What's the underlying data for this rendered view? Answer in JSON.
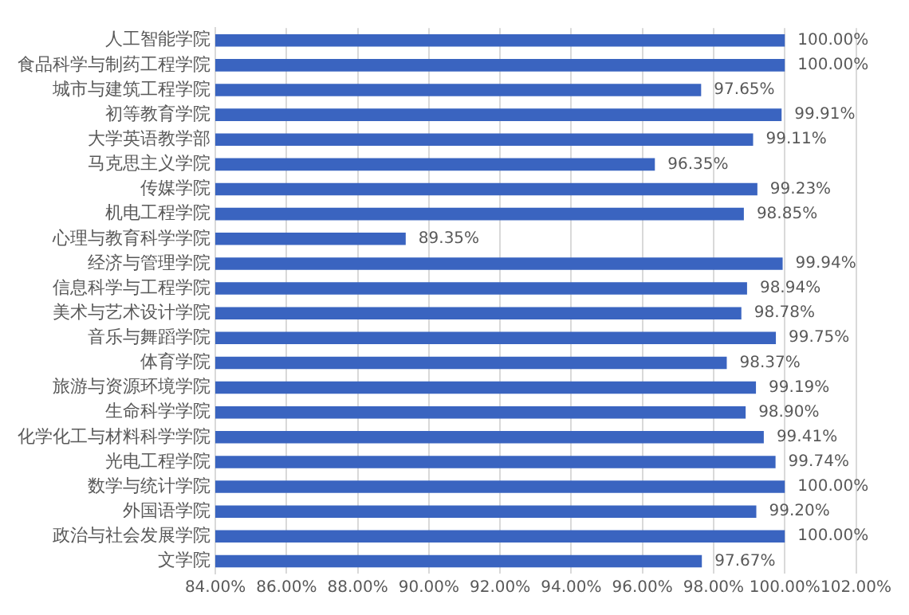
{
  "chart_data": {
    "type": "bar",
    "orientation": "horizontal",
    "categories": [
      "人工智能学院",
      "食品科学与制药工程学院",
      "城市与建筑工程学院",
      "初等教育学院",
      "大学英语教学部",
      "马克思主义学院",
      "传媒学院",
      "机电工程学院",
      "心理与教育科学学院",
      "经济与管理学院",
      "信息科学与工程学院",
      "美术与艺术设计学院",
      "音乐与舞蹈学院",
      "体育学院",
      "旅游与资源环境学院",
      "生命科学学院",
      "化学化工与材料科学学院",
      "光电工程学院",
      "数学与统计学院",
      "外国语学院",
      "政治与社会发展学院",
      "文学院"
    ],
    "values": [
      100,
      100,
      97.65,
      99.91,
      99.11,
      96.35,
      99.23,
      98.85,
      89.35,
      99.94,
      98.94,
      98.78,
      99.75,
      98.37,
      99.19,
      98.9,
      99.41,
      99.74,
      100,
      99.2,
      100,
      97.67
    ],
    "value_labels": [
      "100.00%",
      "100.00%",
      "97.65%",
      "99.91%",
      "99.11%",
      "96.35%",
      "99.23%",
      "98.85%",
      "89.35%",
      "99.94%",
      "98.94%",
      "98.78%",
      "99.75%",
      "98.37%",
      "99.19%",
      "98.90%",
      "99.41%",
      "99.74%",
      "100.00%",
      "99.20%",
      "100.00%",
      "97.67%"
    ],
    "color": "#3a64c0",
    "xlim": [
      84,
      102
    ],
    "xticks": [
      {
        "value": 84,
        "label": "84.00%"
      },
      {
        "value": 86,
        "label": "86.00%"
      },
      {
        "value": 88,
        "label": "88.00%"
      },
      {
        "value": 90,
        "label": "90.00%"
      },
      {
        "value": 92,
        "label": "92.00%"
      },
      {
        "value": 94,
        "label": "94.00%"
      },
      {
        "value": 96,
        "label": "96.00%"
      },
      {
        "value": 98,
        "label": "98.00%"
      },
      {
        "value": 100,
        "label": "100.00%"
      },
      {
        "value": 102,
        "label": "102.00%"
      }
    ],
    "grid": "x"
  }
}
